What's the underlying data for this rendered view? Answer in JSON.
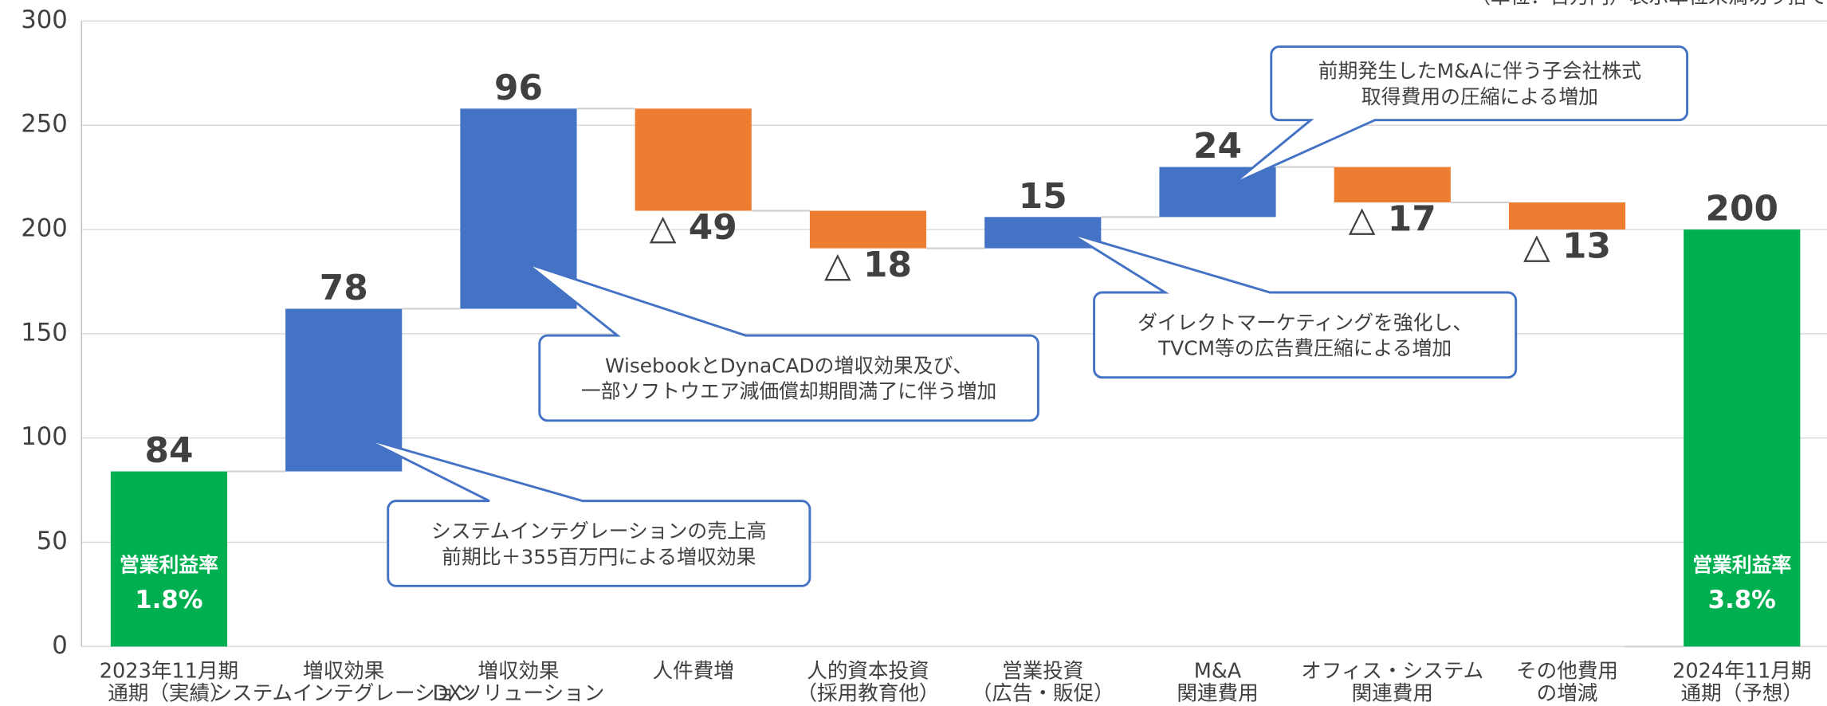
{
  "chart_data": {
    "type": "waterfall",
    "unit_note": "（単位：百万円）表示単位未満切り捨て",
    "categories": [
      [
        "2023年11月期",
        "通期（実績）"
      ],
      [
        "増収効果",
        "システムインテグレーション"
      ],
      [
        "増収効果",
        "DXソリューション"
      ],
      [
        "人件費増"
      ],
      [
        "人的資本投資",
        "（採用教育他）"
      ],
      [
        "営業投資",
        "（広告・販促）"
      ],
      [
        "M&A",
        "関連費用"
      ],
      [
        "オフィス・システム",
        "関連費用"
      ],
      [
        "その他費用",
        "の増減"
      ],
      [
        "2024年11月期",
        "通期（予想）"
      ]
    ],
    "values": [
      84,
      78,
      96,
      -49,
      -18,
      15,
      24,
      -17,
      -13,
      200
    ],
    "value_labels": [
      "84",
      "78",
      "96",
      "△ 49",
      "△ 18",
      "15",
      "24",
      "△ 17",
      "△ 13",
      "200"
    ],
    "kinds": [
      "total",
      "delta",
      "delta",
      "delta",
      "delta",
      "delta",
      "delta",
      "delta",
      "delta",
      "total"
    ],
    "colors": {
      "total": "#00b050",
      "increase": "#4472c4",
      "decrease": "#ed7d31"
    },
    "ylim": [
      0,
      300
    ],
    "yticks": [
      0,
      50,
      100,
      150,
      200,
      250,
      300
    ],
    "grid": true,
    "rate_labels": [
      {
        "category": 0,
        "title": "営業利益率",
        "value": "1.8%"
      },
      {
        "category": 9,
        "title": "営業利益率",
        "value": "3.8%"
      }
    ],
    "annotations": [
      [
        "システムインテグレーションの売上高",
        "前期比＋355百万円による増収効果"
      ],
      [
        "WisebookとDynaCADの増収効果及び、",
        "一部ソフトウエア減価償却期間満了に伴う増加"
      ],
      [
        "ダイレクトマーケティングを強化し、",
        "TVCM等の広告費圧縮による増加"
      ],
      [
        "前期発生したM&Aに伴う子会社株式",
        "取得費用の圧縮による増加"
      ]
    ]
  }
}
